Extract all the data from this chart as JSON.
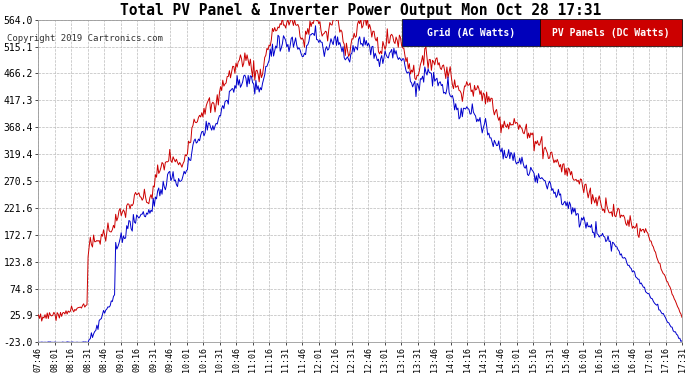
{
  "title": "Total PV Panel & Inverter Power Output Mon Oct 28 17:31",
  "copyright": "Copyright 2019 Cartronics.com",
  "grid_label": "Grid (AC Watts)",
  "pv_label": "PV Panels (DC Watts)",
  "grid_color": "#0000cc",
  "pv_color": "#cc0000",
  "legend_grid_bg": "#0000bb",
  "legend_pv_bg": "#cc0000",
  "background_color": "#ffffff",
  "plot_bg": "#ffffff",
  "grid_line_color": "#bbbbbb",
  "ymin": -23.0,
  "ymax": 564.0,
  "yticks": [
    -23.0,
    25.9,
    74.8,
    123.8,
    172.7,
    221.6,
    270.5,
    319.4,
    368.4,
    417.3,
    466.2,
    515.1,
    564.0
  ],
  "xtick_labels": [
    "07:46",
    "08:01",
    "08:16",
    "08:31",
    "08:46",
    "09:01",
    "09:16",
    "09:31",
    "09:46",
    "10:01",
    "10:16",
    "10:31",
    "10:46",
    "11:01",
    "11:16",
    "11:31",
    "11:46",
    "12:01",
    "12:16",
    "12:31",
    "12:46",
    "13:01",
    "13:16",
    "13:31",
    "13:46",
    "14:01",
    "14:16",
    "14:31",
    "14:46",
    "15:01",
    "15:16",
    "15:31",
    "15:46",
    "16:01",
    "16:16",
    "16:31",
    "16:46",
    "17:01",
    "17:16",
    "17:31"
  ]
}
